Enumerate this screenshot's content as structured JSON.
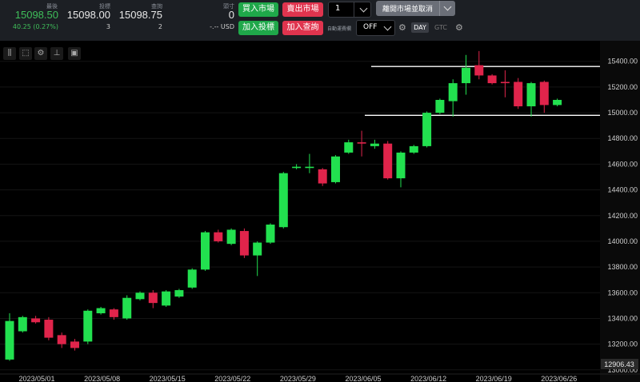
{
  "quote": {
    "last_label": "最後",
    "last_value": "15098.50",
    "change": "40.25 (0.27%)",
    "bid_label": "投標",
    "bid_price": "15098.00",
    "bid_size": "3",
    "ask_label": "查詢",
    "ask_price": "15098.75",
    "ask_size": "2"
  },
  "position": {
    "label": "頭寸",
    "value": "0",
    "pnl": "-.-- USD"
  },
  "buttons": {
    "buy_market": "買入市場",
    "sell_market": "賣出市場",
    "join_bid": "加入投標",
    "join_ask": "加入查詢",
    "flatten_cancel": "離開市場並取消"
  },
  "quantity": "1",
  "auto_label": "自動運費欄",
  "auto_value": "OFF",
  "tif": {
    "day": "DAY",
    "gtc": "GTC"
  },
  "colors": {
    "up": "#22e04f",
    "down": "#e0244b",
    "quote_green": "#3fbf5a",
    "grid": "#222",
    "axis_text": "#cfcfcf"
  },
  "chart_data": {
    "type": "candlestick",
    "ylim": [
      12980,
      15560
    ],
    "y_ticks": [
      13000,
      13200,
      13400,
      13600,
      13800,
      14000,
      14200,
      14400,
      14600,
      14800,
      15000,
      15200,
      15400
    ],
    "y_tick_labels": [
      "13000.00",
      "13200.00",
      "13400.00",
      "13600.00",
      "13800.00",
      "14000.00",
      "14200.00",
      "14400.00",
      "14600.00",
      "14800.00",
      "15000.00",
      "15200.00",
      "15400.00"
    ],
    "date_labels": [
      "2023/05/01",
      "2023/05/08",
      "2023/05/15",
      "2023/05/22",
      "2023/05/29",
      "2023/06/05",
      "2023/06/12",
      "2023/06/19",
      "2023/06/26"
    ],
    "current_price_label": "12906.43",
    "horizontal_lines": [
      15360,
      14980
    ],
    "candles": [
      {
        "o": 13080,
        "c": 13380,
        "h": 13440,
        "l": 13070
      },
      {
        "o": 13300,
        "c": 13410,
        "h": 13420,
        "l": 13290
      },
      {
        "o": 13400,
        "c": 13370,
        "h": 13420,
        "l": 13360
      },
      {
        "o": 13390,
        "c": 13250,
        "h": 13410,
        "l": 13230
      },
      {
        "o": 13270,
        "c": 13200,
        "h": 13290,
        "l": 13170
      },
      {
        "o": 13220,
        "c": 13170,
        "h": 13240,
        "l": 13150
      },
      {
        "o": 13220,
        "c": 13460,
        "h": 13470,
        "l": 13200
      },
      {
        "o": 13440,
        "c": 13480,
        "h": 13490,
        "l": 13430
      },
      {
        "o": 13470,
        "c": 13410,
        "h": 13480,
        "l": 13390
      },
      {
        "o": 13400,
        "c": 13560,
        "h": 13580,
        "l": 13390
      },
      {
        "o": 13550,
        "c": 13600,
        "h": 13610,
        "l": 13540
      },
      {
        "o": 13600,
        "c": 13520,
        "h": 13620,
        "l": 13480
      },
      {
        "o": 13500,
        "c": 13610,
        "h": 13620,
        "l": 13490
      },
      {
        "o": 13570,
        "c": 13620,
        "h": 13630,
        "l": 13560
      },
      {
        "o": 13640,
        "c": 13780,
        "h": 13790,
        "l": 13630
      },
      {
        "o": 13780,
        "c": 14070,
        "h": 14080,
        "l": 13770
      },
      {
        "o": 14070,
        "c": 14000,
        "h": 14090,
        "l": 13990
      },
      {
        "o": 13980,
        "c": 14090,
        "h": 14100,
        "l": 13970
      },
      {
        "o": 14080,
        "c": 13890,
        "h": 14100,
        "l": 13870
      },
      {
        "o": 13890,
        "c": 13990,
        "h": 14000,
        "l": 13730
      },
      {
        "o": 13990,
        "c": 14130,
        "h": 14140,
        "l": 13980
      },
      {
        "o": 14110,
        "c": 14530,
        "h": 14540,
        "l": 14100
      },
      {
        "o": 14570,
        "c": 14580,
        "h": 14600,
        "l": 14560
      },
      {
        "o": 14570,
        "c": 14580,
        "h": 14680,
        "l": 14530
      },
      {
        "o": 14560,
        "c": 14450,
        "h": 14570,
        "l": 14430
      },
      {
        "o": 14460,
        "c": 14660,
        "h": 14670,
        "l": 14450
      },
      {
        "o": 14690,
        "c": 14770,
        "h": 14790,
        "l": 14680
      },
      {
        "o": 14770,
        "c": 14760,
        "h": 14860,
        "l": 14660
      },
      {
        "o": 14740,
        "c": 14760,
        "h": 14790,
        "l": 14720
      },
      {
        "o": 14760,
        "c": 14490,
        "h": 14780,
        "l": 14480
      },
      {
        "o": 14490,
        "c": 14690,
        "h": 14700,
        "l": 14420
      },
      {
        "o": 14690,
        "c": 14740,
        "h": 14750,
        "l": 14680
      },
      {
        "o": 14740,
        "c": 15000,
        "h": 15010,
        "l": 14730
      },
      {
        "o": 15000,
        "c": 15100,
        "h": 15110,
        "l": 14990
      },
      {
        "o": 15090,
        "c": 15230,
        "h": 15260,
        "l": 14970
      },
      {
        "o": 15230,
        "c": 15350,
        "h": 15450,
        "l": 15140
      },
      {
        "o": 15370,
        "c": 15290,
        "h": 15480,
        "l": 15260
      },
      {
        "o": 15290,
        "c": 15230,
        "h": 15300,
        "l": 15220
      },
      {
        "o": 15240,
        "c": 15230,
        "h": 15330,
        "l": 15120
      },
      {
        "o": 15240,
        "c": 15050,
        "h": 15270,
        "l": 15030
      },
      {
        "o": 15050,
        "c": 15230,
        "h": 15240,
        "l": 14970
      },
      {
        "o": 15240,
        "c": 15060,
        "h": 15250,
        "l": 15000
      },
      {
        "o": 15060,
        "c": 15100,
        "h": 15110,
        "l": 15050
      }
    ]
  }
}
